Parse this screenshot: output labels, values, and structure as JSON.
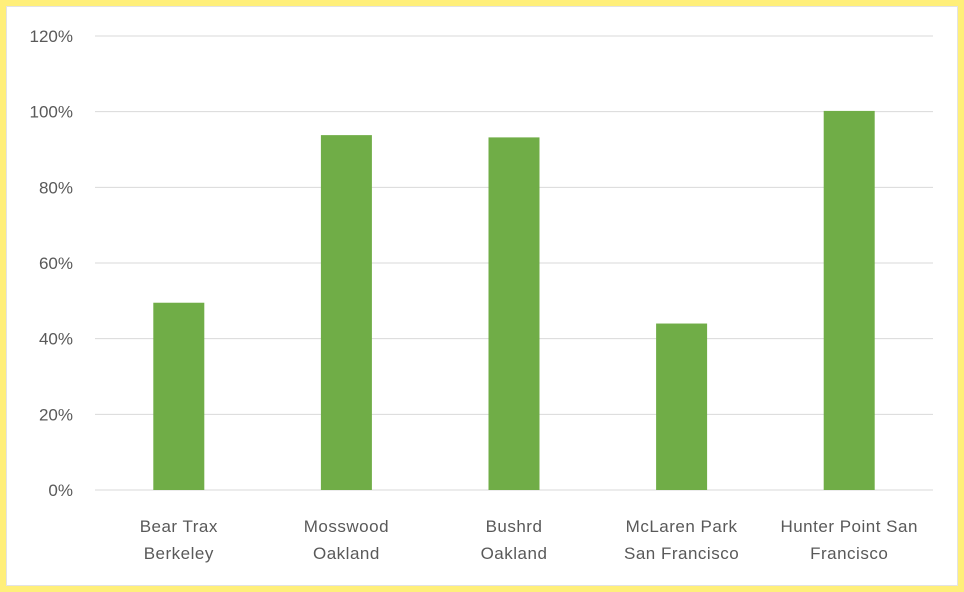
{
  "chart_data": {
    "type": "bar",
    "categories": [
      [
        "Bear Trax",
        "Berkeley"
      ],
      [
        "Mosswood",
        "Oakland"
      ],
      [
        "Bushrd",
        "Oakland"
      ],
      [
        "McLaren Park",
        "San Francisco"
      ],
      [
        "Hunter Point San",
        "Francisco"
      ]
    ],
    "values": [
      49.5,
      93.8,
      93.2,
      44.0,
      100.2
    ],
    "yticks": [
      "0%",
      "20%",
      "40%",
      "60%",
      "80%",
      "100%",
      "120%"
    ],
    "ylim": [
      0,
      120
    ],
    "grid": true,
    "bar_color": "#70ad47",
    "legend": "none"
  }
}
